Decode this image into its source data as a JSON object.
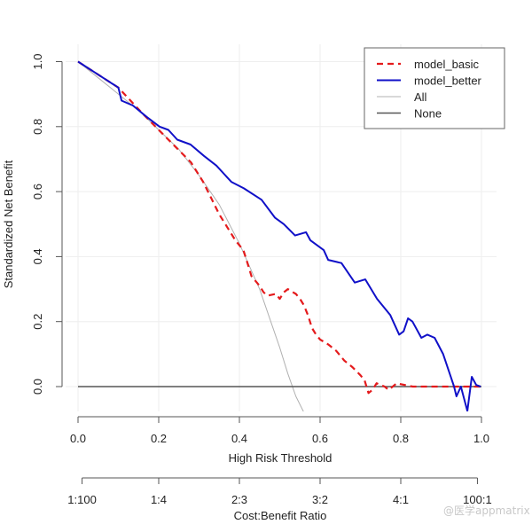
{
  "chart_data": {
    "type": "line",
    "title": "",
    "xlabel": "High Risk Threshold",
    "ylabel": "Standardized Net Benefit",
    "secondary_xlabel": "Cost:Benefit Ratio",
    "xlim": [
      0,
      1
    ],
    "ylim": [
      -0.08,
      1.0
    ],
    "grid": true,
    "x_ticks": [
      0.0,
      0.2,
      0.4,
      0.6,
      0.8,
      1.0
    ],
    "x_tick_labels": [
      "0.0",
      "0.2",
      "0.4",
      "0.6",
      "0.8",
      "1.0"
    ],
    "y_ticks": [
      0.0,
      0.2,
      0.4,
      0.6,
      0.8,
      1.0
    ],
    "y_tick_labels": [
      "0.0",
      "0.2",
      "0.4",
      "0.6",
      "0.8",
      "1.0"
    ],
    "secondary_x_ticks": [
      0.01,
      0.2,
      0.4,
      0.6,
      0.8,
      0.99
    ],
    "secondary_x_tick_labels": [
      "1:100",
      "1:4",
      "2:3",
      "3:2",
      "4:1",
      "100:1"
    ],
    "legend_position": "top-right",
    "legend": [
      "model_basic",
      "model_better",
      "All",
      "None"
    ],
    "series": [
      {
        "name": "model_basic",
        "color": "#e41a1c",
        "style": "dashed",
        "x": [
          0.0,
          0.05,
          0.1,
          0.13,
          0.16,
          0.2,
          0.24,
          0.28,
          0.31,
          0.33,
          0.35,
          0.37,
          0.39,
          0.41,
          0.42,
          0.43,
          0.45,
          0.46,
          0.47,
          0.49,
          0.5,
          0.51,
          0.52,
          0.54,
          0.55,
          0.56,
          0.57,
          0.58,
          0.59,
          0.6,
          0.62,
          0.64,
          0.66,
          0.68,
          0.7,
          0.71,
          0.72,
          0.73,
          0.74,
          0.76,
          0.77,
          0.79,
          0.81,
          0.83,
          0.86,
          0.9,
          0.95,
          1.0
        ],
        "y": [
          1.0,
          0.96,
          0.92,
          0.88,
          0.84,
          0.79,
          0.74,
          0.69,
          0.63,
          0.58,
          0.53,
          0.49,
          0.45,
          0.42,
          0.38,
          0.34,
          0.31,
          0.29,
          0.28,
          0.285,
          0.27,
          0.29,
          0.3,
          0.285,
          0.27,
          0.25,
          0.22,
          0.18,
          0.16,
          0.145,
          0.13,
          0.11,
          0.08,
          0.06,
          0.035,
          0.02,
          -0.02,
          -0.01,
          0.01,
          0.0,
          -0.01,
          0.01,
          0.005,
          0.0,
          0.0,
          0.0,
          0.0,
          0.0
        ]
      },
      {
        "name": "model_better",
        "color": "#1010c8",
        "style": "solid",
        "x": [
          0.0,
          0.05,
          0.1,
          0.108,
          0.136,
          0.17,
          0.202,
          0.224,
          0.246,
          0.279,
          0.312,
          0.343,
          0.38,
          0.411,
          0.455,
          0.488,
          0.51,
          0.538,
          0.565,
          0.576,
          0.609,
          0.62,
          0.653,
          0.686,
          0.712,
          0.741,
          0.774,
          0.796,
          0.807,
          0.818,
          0.829,
          0.851,
          0.866,
          0.884,
          0.905,
          0.932,
          0.938,
          0.949,
          0.965,
          0.976,
          0.987,
          0.998
        ],
        "y": [
          1.0,
          0.96,
          0.92,
          0.88,
          0.865,
          0.83,
          0.8,
          0.79,
          0.76,
          0.745,
          0.71,
          0.68,
          0.63,
          0.61,
          0.575,
          0.52,
          0.5,
          0.465,
          0.475,
          0.45,
          0.42,
          0.39,
          0.38,
          0.32,
          0.33,
          0.27,
          0.22,
          0.16,
          0.17,
          0.21,
          0.2,
          0.15,
          0.16,
          0.15,
          0.1,
          0.0,
          -0.03,
          0.0,
          -0.075,
          0.03,
          0.005,
          0.0
        ]
      },
      {
        "name": "All",
        "color": "#b0b0b0",
        "style": "solid",
        "x": [
          0.0,
          0.05,
          0.1,
          0.15,
          0.2,
          0.25,
          0.3,
          0.35,
          0.4,
          0.45,
          0.5,
          0.52,
          0.54,
          0.56,
          0.565
        ],
        "y": [
          1.0,
          0.95,
          0.9,
          0.85,
          0.79,
          0.73,
          0.65,
          0.56,
          0.44,
          0.3,
          0.12,
          0.04,
          -0.03,
          -0.08,
          -0.095
        ]
      },
      {
        "name": "None",
        "color": "#555555",
        "style": "solid",
        "x": [
          0.0,
          1.0
        ],
        "y": [
          0.0,
          0.0
        ]
      }
    ]
  },
  "watermark": "@医学appmatrix"
}
